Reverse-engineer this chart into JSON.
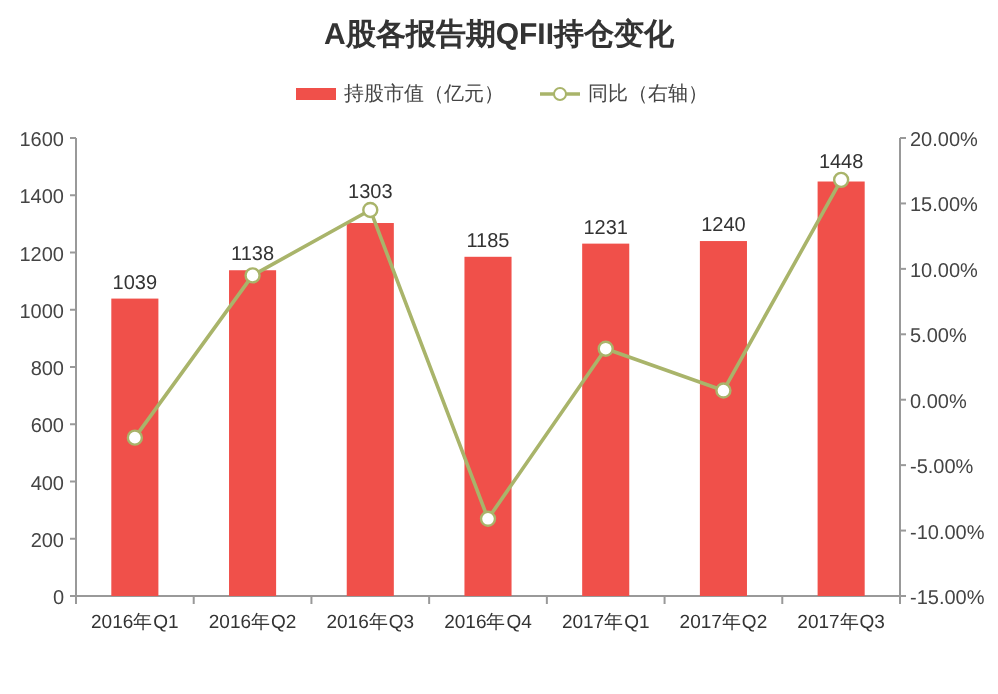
{
  "chart_data": {
    "type": "bar",
    "title": "A股各报告期QFII持仓变化",
    "categories": [
      "2016年Q1",
      "2016年Q2",
      "2016年Q3",
      "2016年Q4",
      "2017年Q1",
      "2017年Q2",
      "2017年Q3"
    ],
    "series": [
      {
        "name": "持股市值（亿元）",
        "color": "#f0504a",
        "values": [
          1039,
          1138,
          1303,
          1185,
          1231,
          1240,
          1448
        ],
        "value_labels": [
          "1039",
          "1138",
          "1303",
          "1185",
          "1231",
          "1240",
          "1448"
        ]
      },
      {
        "name": "同比（右轴）",
        "type": "line",
        "axis": "y2",
        "color": "#a9b46a",
        "marker": "circle",
        "values": [
          -2.9,
          9.5,
          14.5,
          -9.1,
          3.9,
          0.7,
          16.8
        ]
      }
    ],
    "ylim": [
      0,
      1600
    ],
    "yticks": [
      0,
      200,
      400,
      600,
      800,
      1000,
      1200,
      1400,
      1600
    ],
    "y2lim": [
      -15,
      20
    ],
    "y2ticks": [
      {
        "value": -15,
        "label": "-15.00%"
      },
      {
        "value": -10,
        "label": "-10.00%"
      },
      {
        "value": -5,
        "label": "-5.00%"
      },
      {
        "value": 0,
        "label": "0.00%"
      },
      {
        "value": 5,
        "label": "5.00%"
      },
      {
        "value": 10,
        "label": "10.00%"
      },
      {
        "value": 15,
        "label": "15.00%"
      },
      {
        "value": 20,
        "label": "20.00%"
      }
    ],
    "grid": false,
    "legend": "top"
  }
}
